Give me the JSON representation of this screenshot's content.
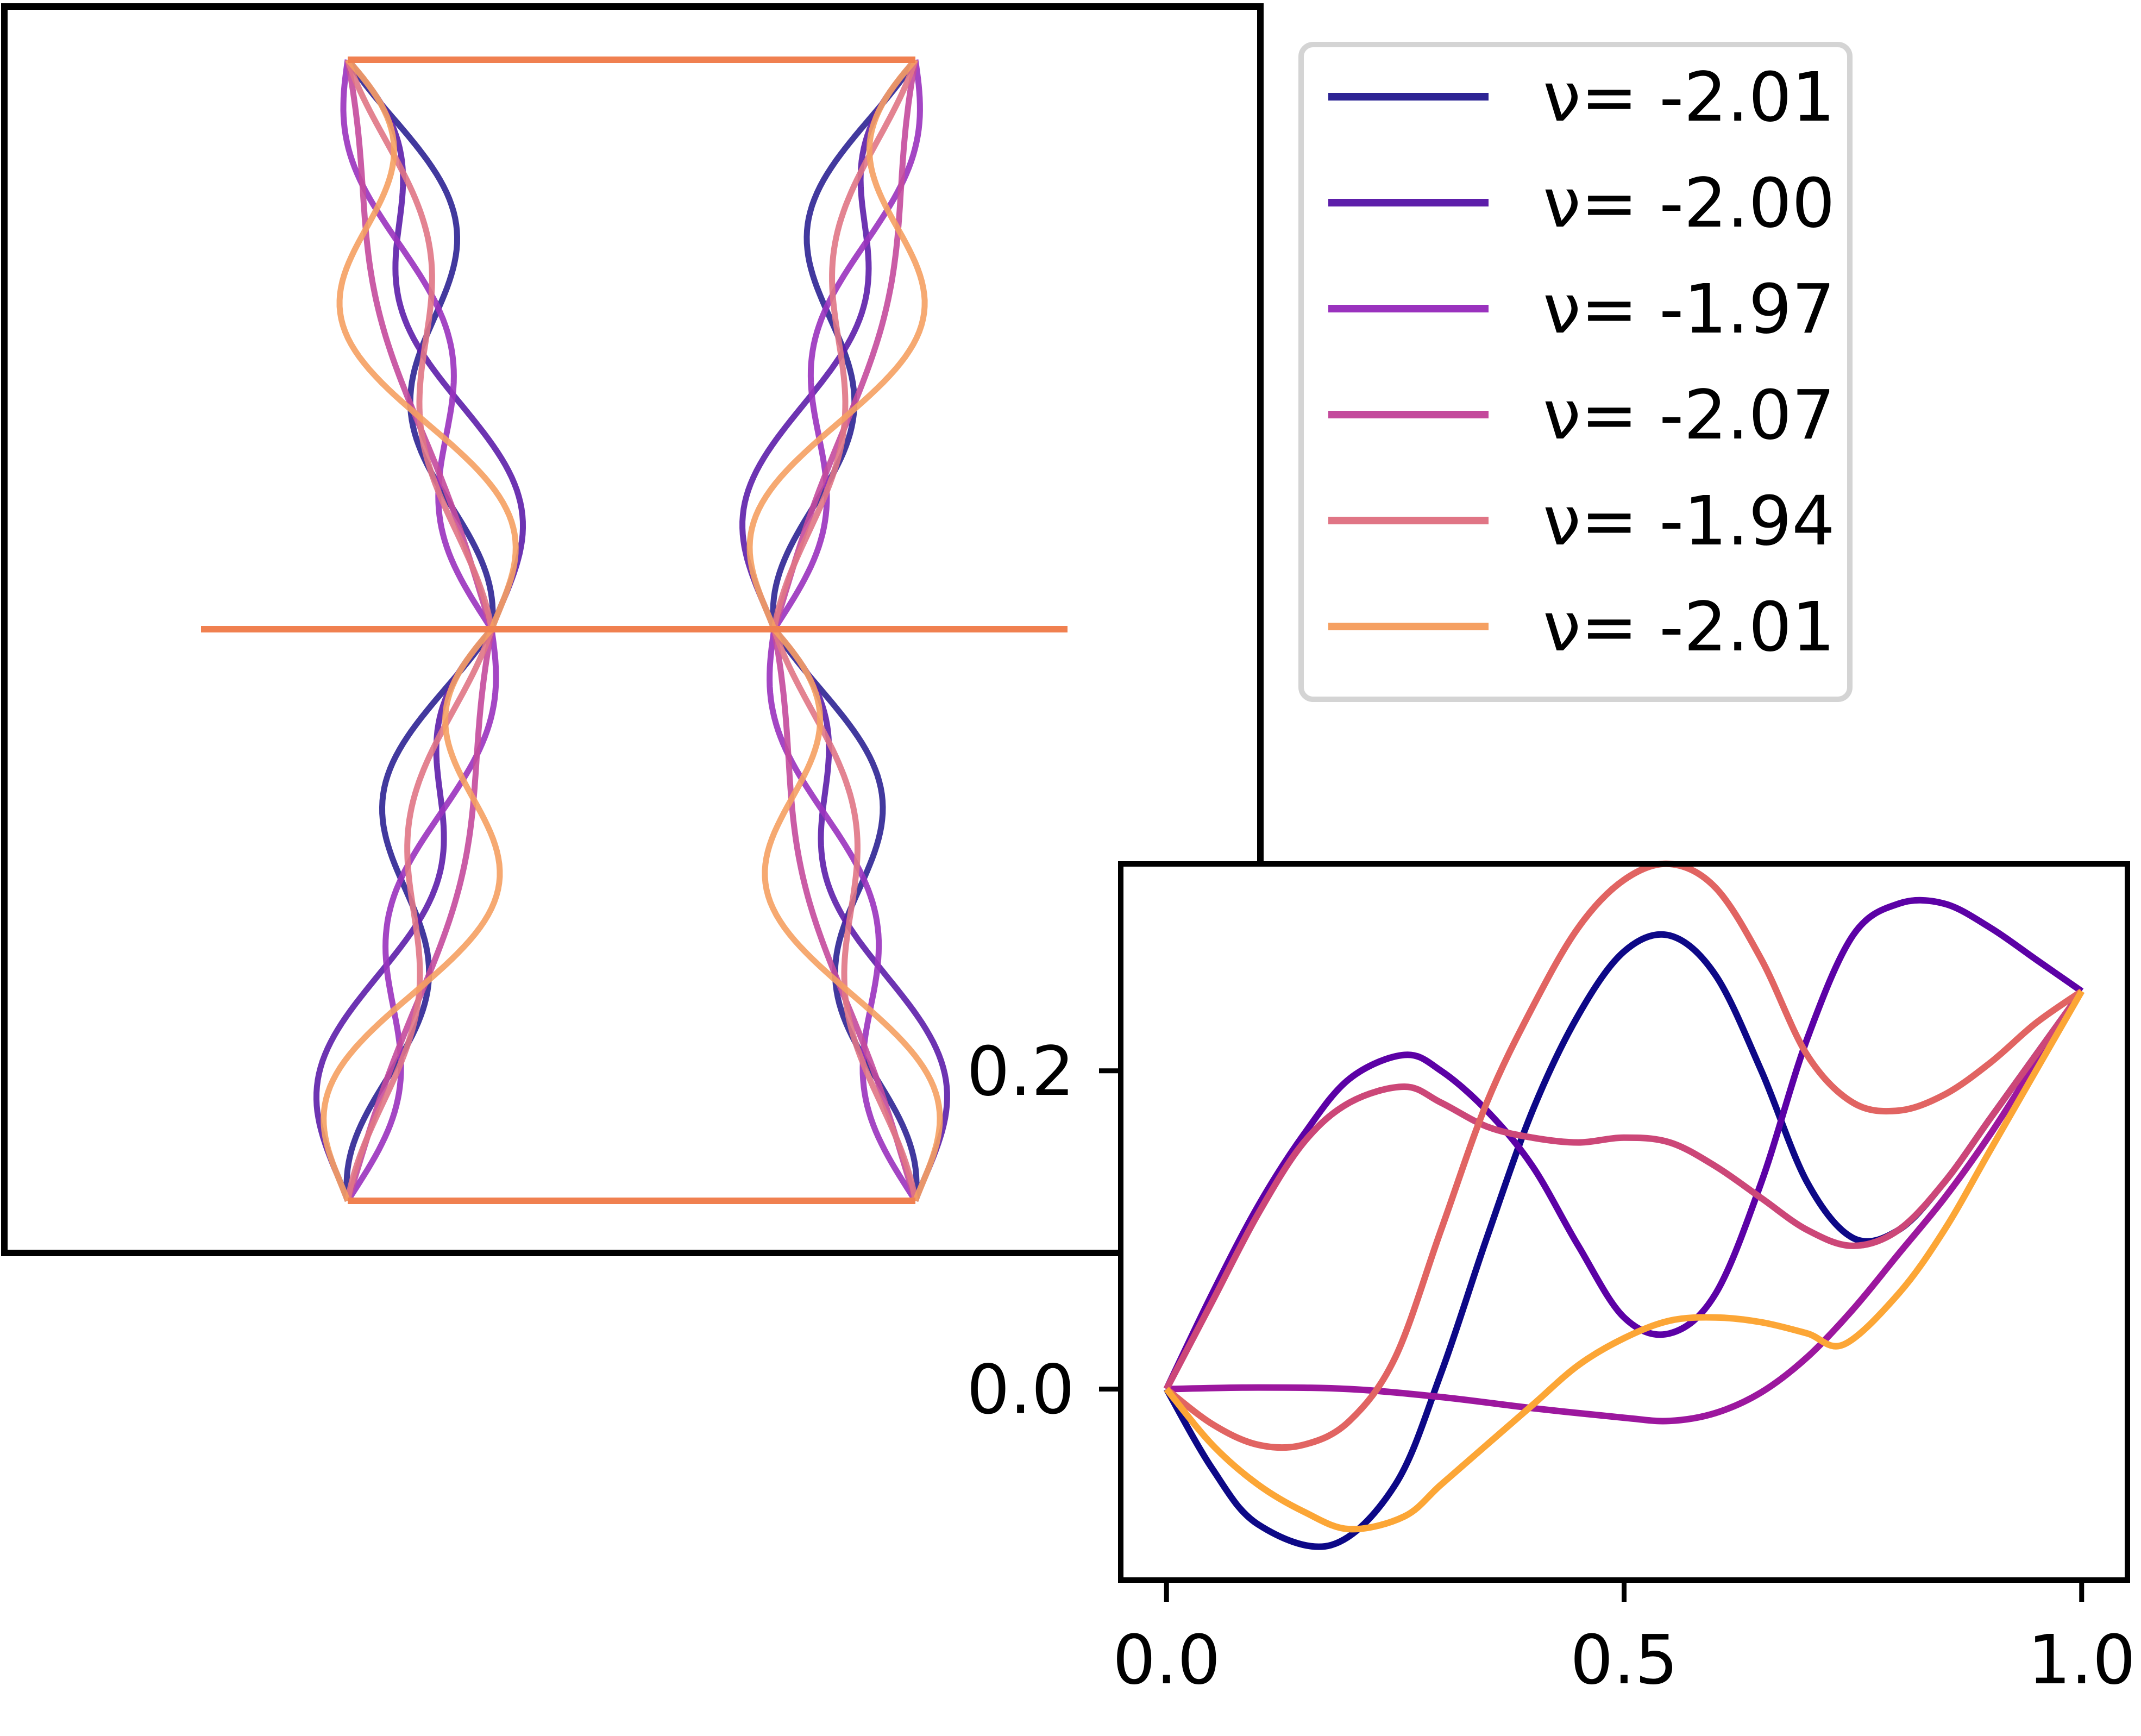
{
  "legend": {
    "entries": [
      {
        "label": "ν= -2.01",
        "color": "#2d2494"
      },
      {
        "label": "ν= -2.00",
        "color": "#5d1eaa"
      },
      {
        "label": "ν= -1.97",
        "color": "#9a32be"
      },
      {
        "label": "ν= -2.07",
        "color": "#c44a9c"
      },
      {
        "label": "ν= -1.94",
        "color": "#e07585"
      },
      {
        "label": "ν= -2.01",
        "color": "#f5a062"
      }
    ]
  },
  "chart_data": [
    {
      "type": "line",
      "name": "mode-shapes",
      "xlabel": "",
      "ylabel": "",
      "grid": false,
      "axes_visible": false,
      "frame": {
        "color": "#f08050",
        "description": "rectangular truss: top bar, bottom bar, middle horizontal bar extending beyond both sides"
      },
      "note_series": "six buckled column pairs, symmetric about the vertical centre, pinned at top, middle and bottom joints",
      "series_colors": [
        "#2d2494",
        "#5d1eaa",
        "#9a32be",
        "#c44a9c",
        "#e07585",
        "#f5a062"
      ]
    },
    {
      "type": "line",
      "name": "inset",
      "xlabel": "",
      "ylabel": "",
      "xlim": [
        -0.05,
        1.05
      ],
      "ylim": [
        -0.12,
        0.33
      ],
      "xticks": [
        0.0,
        0.5,
        1.0
      ],
      "xtick_labels": [
        "0.0",
        "0.5",
        "1.0"
      ],
      "yticks": [
        0.0,
        0.2
      ],
      "ytick_labels": [
        "0.0",
        "0.2"
      ],
      "grid": false,
      "series": [
        {
          "color": "#0d0887",
          "x": [
            0,
            0.05,
            0.1,
            0.18,
            0.25,
            0.3,
            0.35,
            0.4,
            0.45,
            0.5,
            0.55,
            0.6,
            0.65,
            0.7,
            0.75,
            0.8,
            0.85,
            0.9,
            0.95,
            1.0
          ],
          "y": [
            0,
            -0.05,
            -0.085,
            -0.098,
            -0.06,
            0.01,
            0.095,
            0.175,
            0.235,
            0.275,
            0.285,
            0.26,
            0.2,
            0.13,
            0.095,
            0.1,
            0.13,
            0.17,
            0.21,
            0.25
          ]
        },
        {
          "color": "#5c01a6",
          "x": [
            0,
            0.05,
            0.1,
            0.15,
            0.2,
            0.26,
            0.3,
            0.35,
            0.4,
            0.45,
            0.5,
            0.55,
            0.6,
            0.65,
            0.7,
            0.75,
            0.8,
            0.85,
            0.9,
            0.95,
            1.0
          ],
          "y": [
            0,
            0.06,
            0.115,
            0.16,
            0.195,
            0.21,
            0.2,
            0.175,
            0.14,
            0.09,
            0.045,
            0.035,
            0.06,
            0.13,
            0.22,
            0.285,
            0.305,
            0.305,
            0.29,
            0.27,
            0.25
          ]
        },
        {
          "color": "#9c179e",
          "x": [
            0,
            0.1,
            0.2,
            0.3,
            0.4,
            0.5,
            0.55,
            0.6,
            0.65,
            0.7,
            0.75,
            0.8,
            0.85,
            0.9,
            0.95,
            1.0
          ],
          "y": [
            0,
            0.001,
            0.0,
            -0.005,
            -0.012,
            -0.018,
            -0.02,
            -0.015,
            -0.002,
            0.02,
            0.05,
            0.085,
            0.12,
            0.16,
            0.205,
            0.25
          ]
        },
        {
          "color": "#cc4778",
          "x": [
            0,
            0.05,
            0.1,
            0.15,
            0.2,
            0.26,
            0.3,
            0.35,
            0.4,
            0.45,
            0.5,
            0.55,
            0.6,
            0.65,
            0.7,
            0.75,
            0.8,
            0.85,
            0.9,
            0.95,
            1.0
          ],
          "y": [
            0,
            0.055,
            0.11,
            0.155,
            0.18,
            0.19,
            0.18,
            0.165,
            0.158,
            0.155,
            0.158,
            0.155,
            0.14,
            0.12,
            0.1,
            0.09,
            0.1,
            0.13,
            0.17,
            0.21,
            0.25
          ]
        },
        {
          "color": "#e16462",
          "x": [
            0,
            0.05,
            0.1,
            0.15,
            0.2,
            0.25,
            0.3,
            0.35,
            0.4,
            0.45,
            0.5,
            0.55,
            0.6,
            0.65,
            0.7,
            0.75,
            0.8,
            0.85,
            0.9,
            0.95,
            1.0
          ],
          "y": [
            0,
            -0.022,
            -0.035,
            -0.035,
            -0.02,
            0.02,
            0.1,
            0.18,
            0.24,
            0.29,
            0.32,
            0.33,
            0.315,
            0.27,
            0.21,
            0.18,
            0.175,
            0.185,
            0.205,
            0.23,
            0.25
          ]
        },
        {
          "color": "#fca636",
          "x": [
            0,
            0.05,
            0.1,
            0.15,
            0.2,
            0.26,
            0.3,
            0.35,
            0.4,
            0.45,
            0.5,
            0.55,
            0.6,
            0.65,
            0.7,
            0.74,
            0.8,
            0.85,
            0.9,
            0.95,
            1.0
          ],
          "y": [
            0,
            -0.035,
            -0.06,
            -0.077,
            -0.088,
            -0.08,
            -0.06,
            -0.035,
            -0.01,
            0.015,
            0.032,
            0.043,
            0.045,
            0.042,
            0.035,
            0.028,
            0.06,
            0.1,
            0.15,
            0.2,
            0.25
          ]
        }
      ]
    }
  ]
}
